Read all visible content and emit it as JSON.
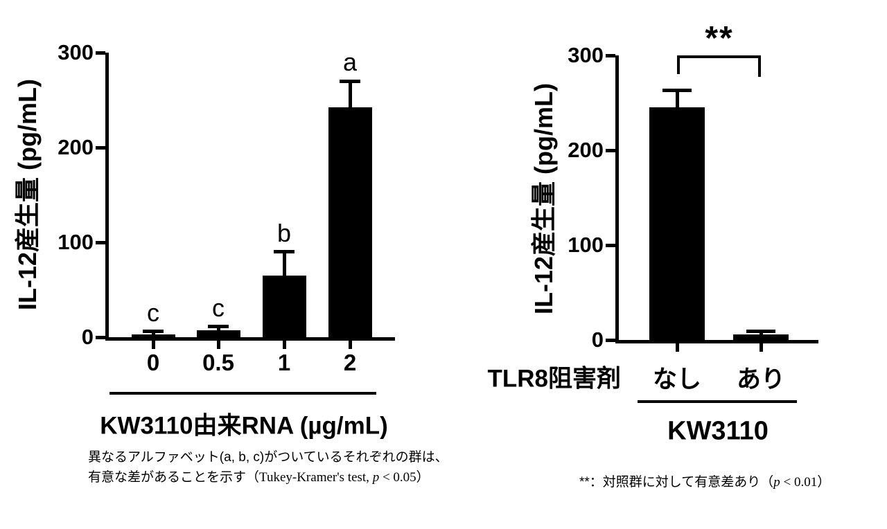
{
  "figure": {
    "background": "#ffffff",
    "ink_color": "#000000"
  },
  "chart_data": [
    {
      "type": "bar",
      "title": "",
      "ylabel": "IL-12産生量 (pg/mL)",
      "xlabel": "KW3110由来RNA (µg/mL)",
      "ylim": [
        0,
        300
      ],
      "yticks": [
        0,
        100,
        200,
        300
      ],
      "categories": [
        "0",
        "0.5",
        "1",
        "2"
      ],
      "values": [
        3,
        7,
        65,
        242
      ],
      "errors_plus": [
        3,
        4,
        25,
        28
      ],
      "bar_letters": [
        "c",
        "c",
        "b",
        "a"
      ],
      "bar_color": "#000000",
      "grid": false,
      "legend": "none",
      "note_line1": "異なるアルファベット(a, b, c)がついているそれぞれの群は、",
      "note_line2_parts": [
        "有意な差があることを示す",
        "（Tukey-Kramer's test, ",
        "p",
        " < 0.05）"
      ]
    },
    {
      "type": "bar",
      "title": "",
      "ylabel": "IL-12産生量 (pg/mL)",
      "x_row_label": "TLR8阻害剤",
      "group_label": "KW3110",
      "ylim": [
        0,
        300
      ],
      "yticks": [
        0,
        100,
        200,
        300
      ],
      "categories": [
        "なし",
        "あり"
      ],
      "values": [
        245,
        6
      ],
      "errors_plus": [
        18,
        3
      ],
      "bar_color": "#000000",
      "grid": false,
      "legend": "none",
      "significance_label": "**",
      "significance_between": [
        "なし",
        "あり"
      ],
      "note_parts": [
        "**：対照群に対して有意差あり",
        "（",
        "p",
        " < 0.01）"
      ]
    }
  ]
}
